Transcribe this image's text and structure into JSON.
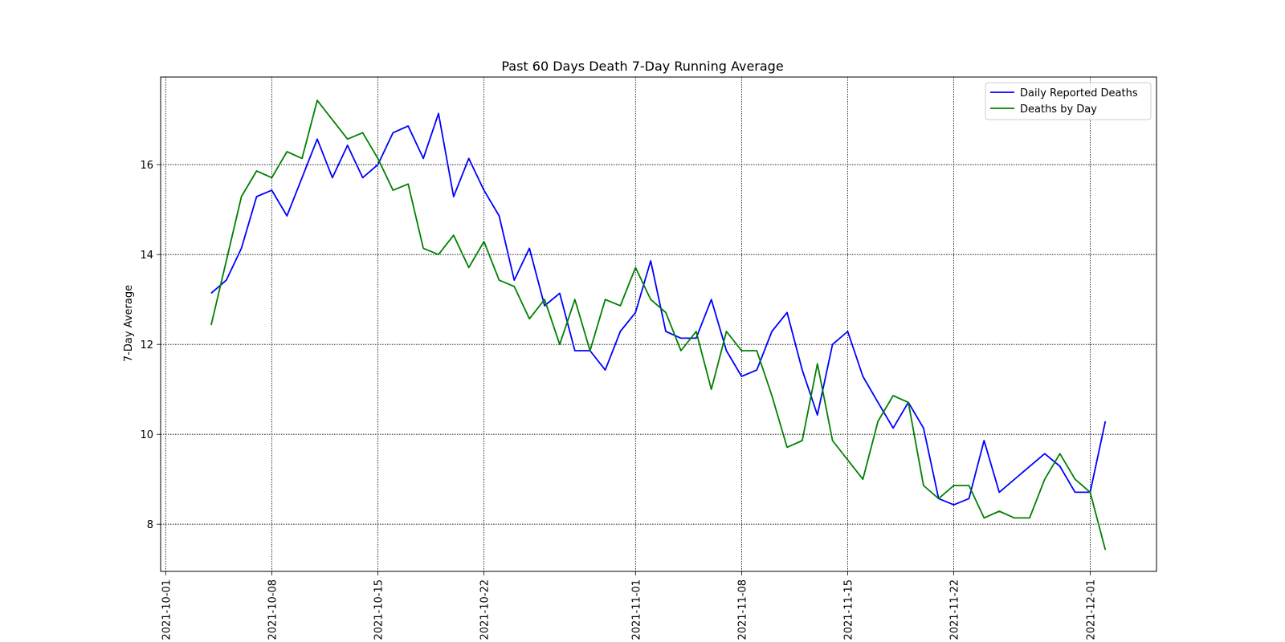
{
  "chart_data": {
    "type": "line",
    "title": "Past 60 Days Death 7-Day Running Average",
    "xlabel": "",
    "ylabel": "7-Day Average",
    "xlim": [
      "2021-09-30T16:00",
      "2021-12-05T09:00"
    ],
    "ylim": [
      6.95,
      17.95
    ],
    "grid": true,
    "legend_position": "top-right",
    "xticks": [
      "2021-10-01",
      "2021-10-08",
      "2021-10-15",
      "2021-10-22",
      "2021-11-01",
      "2021-11-08",
      "2021-11-15",
      "2021-11-22",
      "2021-12-01"
    ],
    "yticks": [
      8,
      10,
      12,
      14,
      16
    ],
    "series": [
      {
        "name": "Daily Reported Deaths",
        "color": "#0000ff",
        "points": [
          [
            "2021-10-04",
            13.14
          ],
          [
            "2021-10-05",
            13.43
          ],
          [
            "2021-10-06",
            14.14
          ],
          [
            "2021-10-07",
            15.29
          ],
          [
            "2021-10-08",
            15.43
          ],
          [
            "2021-10-09",
            14.86
          ],
          [
            "2021-10-10",
            15.71
          ],
          [
            "2021-10-11",
            16.57
          ],
          [
            "2021-10-12",
            15.71
          ],
          [
            "2021-10-13",
            16.43
          ],
          [
            "2021-10-14",
            15.71
          ],
          [
            "2021-10-15",
            16.0
          ],
          [
            "2021-10-16",
            16.71
          ],
          [
            "2021-10-17",
            16.86
          ],
          [
            "2021-10-18",
            16.14
          ],
          [
            "2021-10-19",
            17.14
          ],
          [
            "2021-10-20",
            15.29
          ],
          [
            "2021-10-21",
            16.14
          ],
          [
            "2021-10-22",
            15.43
          ],
          [
            "2021-10-23",
            14.86
          ],
          [
            "2021-10-24",
            13.43
          ],
          [
            "2021-10-25",
            14.14
          ],
          [
            "2021-10-26",
            12.86
          ],
          [
            "2021-10-27",
            13.14
          ],
          [
            "2021-10-28",
            11.86
          ],
          [
            "2021-10-29",
            11.86
          ],
          [
            "2021-10-30",
            11.43
          ],
          [
            "2021-10-31",
            12.29
          ],
          [
            "2021-11-01",
            12.71
          ],
          [
            "2021-11-02",
            13.86
          ],
          [
            "2021-11-03",
            12.29
          ],
          [
            "2021-11-04",
            12.14
          ],
          [
            "2021-11-05",
            12.14
          ],
          [
            "2021-11-06",
            13.0
          ],
          [
            "2021-11-07",
            11.86
          ],
          [
            "2021-11-08",
            11.29
          ],
          [
            "2021-11-09",
            11.43
          ],
          [
            "2021-11-10",
            12.29
          ],
          [
            "2021-11-11",
            12.71
          ],
          [
            "2021-11-12",
            11.43
          ],
          [
            "2021-11-13",
            10.43
          ],
          [
            "2021-11-14",
            12.0
          ],
          [
            "2021-11-15",
            12.29
          ],
          [
            "2021-11-16",
            11.29
          ],
          [
            "2021-11-17",
            10.71
          ],
          [
            "2021-11-18",
            10.14
          ],
          [
            "2021-11-19",
            10.71
          ],
          [
            "2021-11-20",
            10.14
          ],
          [
            "2021-11-21",
            8.57
          ],
          [
            "2021-11-22",
            8.43
          ],
          [
            "2021-11-23",
            8.57
          ],
          [
            "2021-11-24",
            9.86
          ],
          [
            "2021-11-25",
            8.71
          ],
          [
            "2021-11-28",
            9.57
          ],
          [
            "2021-11-29",
            9.29
          ],
          [
            "2021-11-30",
            8.71
          ],
          [
            "2021-12-01",
            8.71
          ],
          [
            "2021-12-02",
            10.29
          ]
        ]
      },
      {
        "name": "Deaths by Day",
        "color": "#008000",
        "points": [
          [
            "2021-10-04",
            12.43
          ],
          [
            "2021-10-05",
            13.86
          ],
          [
            "2021-10-06",
            15.29
          ],
          [
            "2021-10-07",
            15.86
          ],
          [
            "2021-10-08",
            15.71
          ],
          [
            "2021-10-09",
            16.29
          ],
          [
            "2021-10-10",
            16.14
          ],
          [
            "2021-10-11",
            17.43
          ],
          [
            "2021-10-13",
            16.57
          ],
          [
            "2021-10-14",
            16.71
          ],
          [
            "2021-10-15",
            16.14
          ],
          [
            "2021-10-16",
            15.43
          ],
          [
            "2021-10-17",
            15.57
          ],
          [
            "2021-10-18",
            14.14
          ],
          [
            "2021-10-19",
            14.0
          ],
          [
            "2021-10-20",
            14.43
          ],
          [
            "2021-10-21",
            13.71
          ],
          [
            "2021-10-22",
            14.29
          ],
          [
            "2021-10-23",
            13.43
          ],
          [
            "2021-10-24",
            13.29
          ],
          [
            "2021-10-25",
            12.57
          ],
          [
            "2021-10-26",
            13.0
          ],
          [
            "2021-10-27",
            12.0
          ],
          [
            "2021-10-28",
            13.0
          ],
          [
            "2021-10-29",
            11.86
          ],
          [
            "2021-10-30",
            13.0
          ],
          [
            "2021-10-31",
            12.86
          ],
          [
            "2021-11-01",
            13.71
          ],
          [
            "2021-11-02",
            13.0
          ],
          [
            "2021-11-03",
            12.71
          ],
          [
            "2021-11-04",
            11.86
          ],
          [
            "2021-11-05",
            12.29
          ],
          [
            "2021-11-06",
            11.0
          ],
          [
            "2021-11-07",
            12.29
          ],
          [
            "2021-11-08",
            11.86
          ],
          [
            "2021-11-09",
            11.86
          ],
          [
            "2021-11-10",
            10.86
          ],
          [
            "2021-11-11",
            9.71
          ],
          [
            "2021-11-12",
            9.86
          ],
          [
            "2021-11-13",
            11.57
          ],
          [
            "2021-11-14",
            9.86
          ],
          [
            "2021-11-16",
            9.0
          ],
          [
            "2021-11-17",
            10.29
          ],
          [
            "2021-11-18",
            10.86
          ],
          [
            "2021-11-19",
            10.71
          ],
          [
            "2021-11-20",
            8.86
          ],
          [
            "2021-11-21",
            8.57
          ],
          [
            "2021-11-22",
            8.86
          ],
          [
            "2021-11-23",
            8.86
          ],
          [
            "2021-11-24",
            8.14
          ],
          [
            "2021-11-25",
            8.29
          ],
          [
            "2021-11-26",
            8.14
          ],
          [
            "2021-11-27",
            8.14
          ],
          [
            "2021-11-28",
            9.0
          ],
          [
            "2021-11-29",
            9.57
          ],
          [
            "2021-11-30",
            9.0
          ],
          [
            "2021-12-01",
            8.71
          ],
          [
            "2021-12-02",
            7.43
          ]
        ]
      }
    ]
  }
}
